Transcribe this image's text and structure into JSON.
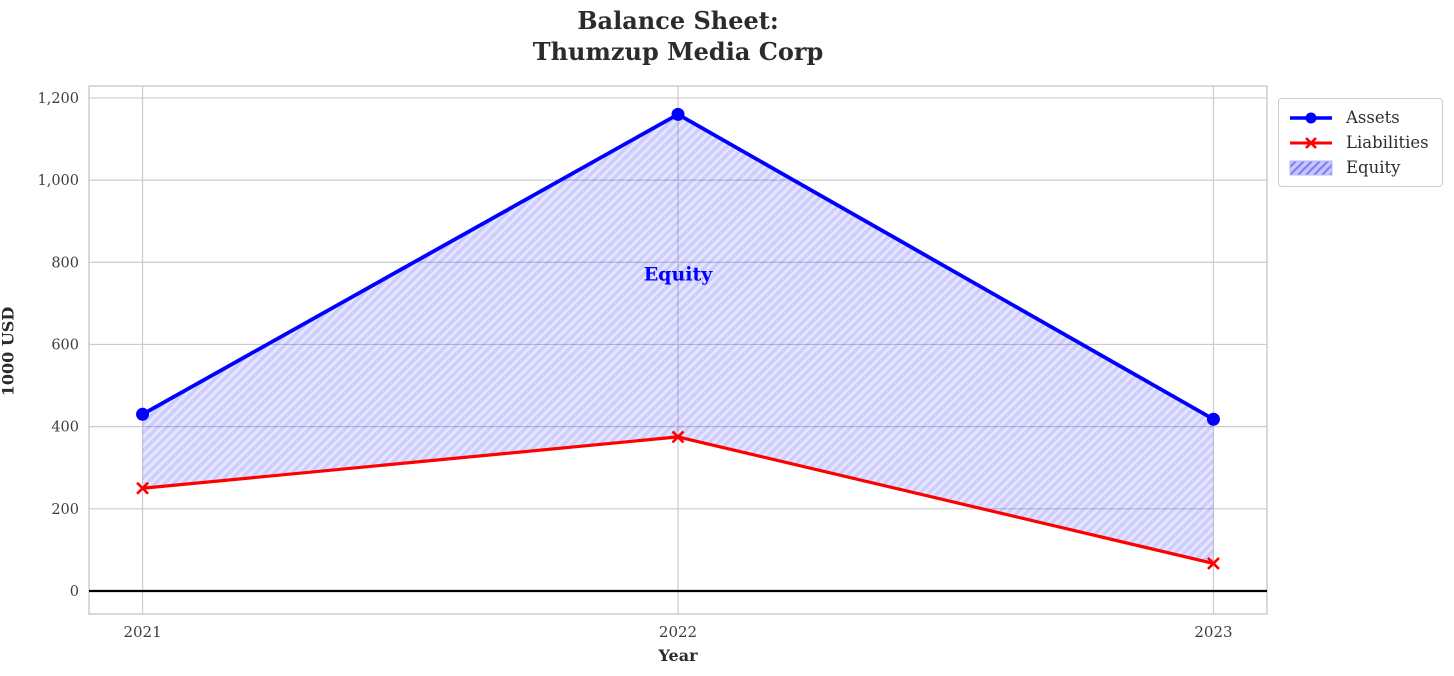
{
  "chart_data": {
    "type": "line",
    "title": "Balance Sheet:\nThumzup Media Corp",
    "title_lines": [
      "Balance Sheet:",
      "Thumzup Media Corp"
    ],
    "xlabel": "Year",
    "ylabel": "1000 USD",
    "x": [
      2021,
      2022,
      2023
    ],
    "series": [
      {
        "name": "Assets",
        "values": [
          430,
          1160,
          418
        ],
        "color": "#0000ff",
        "marker": "circle"
      },
      {
        "name": "Liabilities",
        "values": [
          250,
          375,
          67
        ],
        "color": "#ff0000",
        "marker": "x"
      }
    ],
    "area": {
      "name": "Equity",
      "between": [
        "Assets",
        "Liabilities"
      ],
      "fill": "rgba(0,0,255,0.10)",
      "hatch_color": "rgba(0,0,255,0.11)",
      "hatch": "diagonal",
      "legend_fill": "rgba(0,0,255,0.22)",
      "legend_hatch_color": "rgba(40,40,230,0.45)",
      "label_annotation": {
        "text": "Equity",
        "x": 2022,
        "y": 770,
        "color": "#0000ff"
      }
    },
    "xlim": [
      2020.9,
      2023.1
    ],
    "ylim": [
      -56,
      1229
    ],
    "x_ticks": [
      {
        "v": 2021,
        "label": "2021"
      },
      {
        "v": 2022,
        "label": "2022"
      },
      {
        "v": 2023,
        "label": "2023"
      }
    ],
    "y_ticks": [
      {
        "v": 0,
        "label": "0"
      },
      {
        "v": 200,
        "label": "200"
      },
      {
        "v": 400,
        "label": "400"
      },
      {
        "v": 600,
        "label": "600"
      },
      {
        "v": 800,
        "label": "800"
      },
      {
        "v": 1000,
        "label": "1,000"
      },
      {
        "v": 1200,
        "label": "1,200"
      }
    ],
    "grid": true,
    "zero_line": true,
    "legend_position": "upper right outside",
    "colors": {
      "grid": "#cccccc",
      "border": "#c9c9c9",
      "zero_line": "#000000",
      "tick_text": "#3d3d3d",
      "title_text": "#2b2b2b"
    }
  }
}
